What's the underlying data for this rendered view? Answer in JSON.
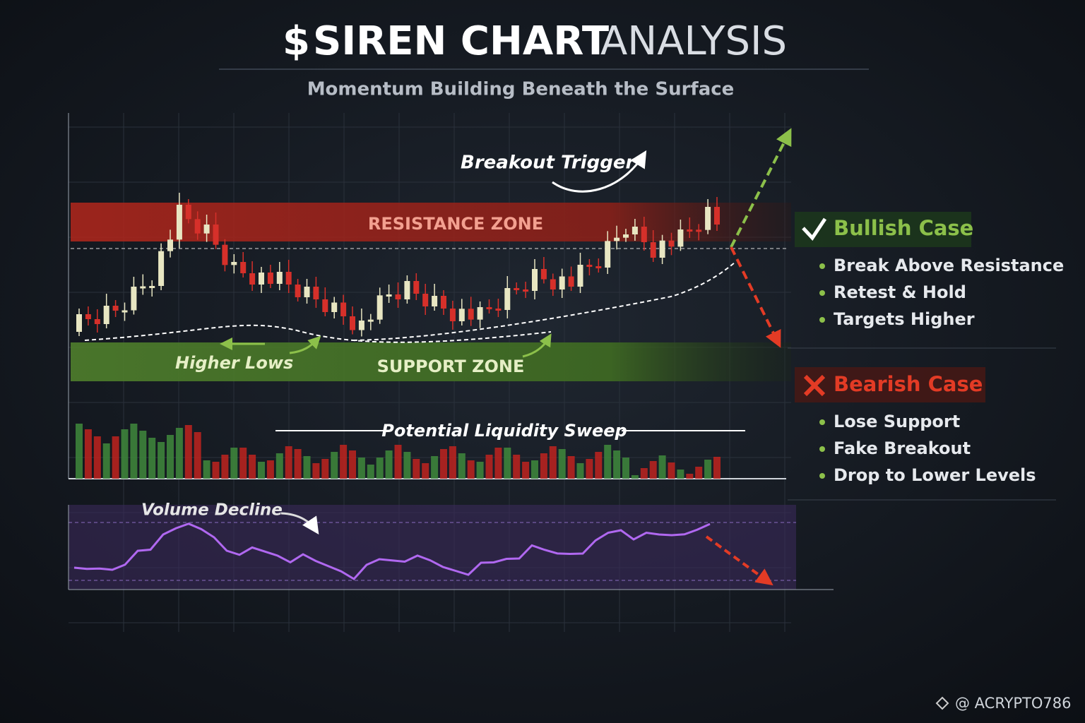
{
  "header": {
    "title_symbol": "$",
    "title_bold": "SIREN CHART",
    "title_light": "ANALYSIS",
    "subtitle": "Momentum Building Beneath the Surface"
  },
  "chart": {
    "resistance": "RESISTANCE ZONE",
    "support": "SUPPORT ZONE",
    "breakout": "Breakout Trigger",
    "higher_lows": "Higher Lows",
    "liquidity": "Potential Liquidity Sweep",
    "volume_decline": "Volume Decline"
  },
  "bullish": {
    "title": "Bullish Case",
    "items": [
      "Break Above Resistance",
      "Retest & Hold",
      "Targets Higher"
    ]
  },
  "bearish": {
    "title": "Bearish Case",
    "items": [
      "Lose Support",
      "Fake Breakout",
      "Drop to Lower Levels"
    ]
  },
  "watermark": "@ ACRYPTO786"
}
